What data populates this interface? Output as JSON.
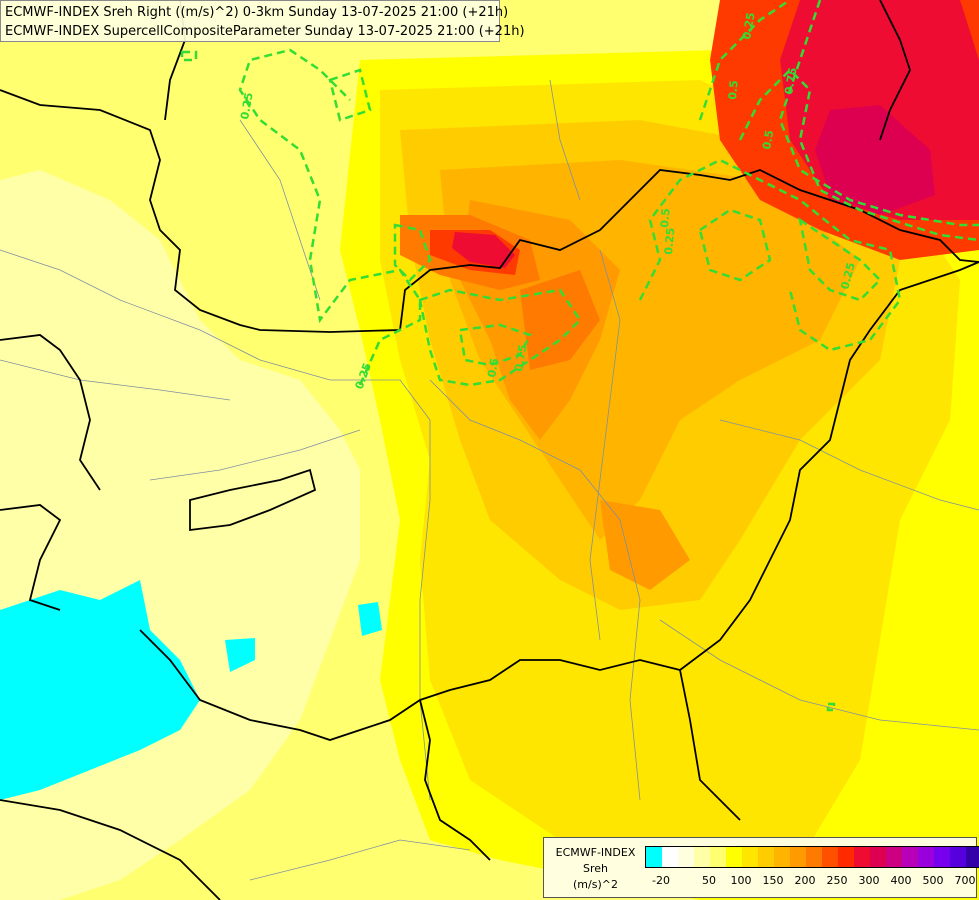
{
  "header": {
    "title_line_1": "ECMWF-INDEX Sreh Right ((m/s)^2) 0-3km Sunday 13-07-2025 21:00 (+21h)",
    "title_line_2": "ECMWF-INDEX SupercellCompositeParameter Sunday 13-07-2025 21:00 (+21h)"
  },
  "legend": {
    "title_line_1": "ECMWF-INDEX",
    "title_line_2": "Sreh",
    "title_line_3": "(m/s)^2",
    "colors": [
      "#00ffff",
      "#ffffff",
      "#ffffe0",
      "#ffffa8",
      "#ffff70",
      "#ffff00",
      "#ffe600",
      "#ffcc00",
      "#ffb400",
      "#ff9a00",
      "#ff7a00",
      "#ff5000",
      "#ff2a00",
      "#ee0c32",
      "#dd0050",
      "#cc0080",
      "#b800b8",
      "#9900dd",
      "#7700ee",
      "#5500dd",
      "#3300aa",
      "#000088"
    ],
    "tick_labels": [
      "-20",
      "50",
      "100",
      "150",
      "200",
      "250",
      "300",
      "400",
      "500",
      "700"
    ]
  },
  "contours": {
    "color": "#33dd33",
    "labels": [
      "0.25",
      "0.25",
      "0.5",
      "0.75",
      "0.5",
      "0.25",
      "0.5",
      "0.75",
      "0.25",
      "0.5",
      "0.25"
    ]
  },
  "field_colors": {
    "pale": "#ffffa8",
    "light": "#ffff70",
    "yellow": "#ffff00",
    "gold": "#ffe600",
    "amber": "#ffcc00",
    "orange": "#ffb400",
    "deep_orange": "#ff9a00",
    "red_orange": "#ff7a00",
    "red": "#ff3a00",
    "crimson": "#ee0c32",
    "magenta": "#dd0050",
    "cyan": "#00ffff",
    "border": "#000000",
    "river": "#8090a0"
  }
}
